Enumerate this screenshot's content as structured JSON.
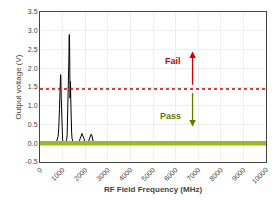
{
  "chart_data": {
    "type": "line",
    "xlabel": "RF Field Frequency (MHz)",
    "ylabel": "Output voltage (V)",
    "xlim": [
      0,
      10000
    ],
    "ylim": [
      -0.5,
      3.5
    ],
    "xticks": [
      0,
      1000,
      2000,
      3000,
      4000,
      5000,
      6000,
      7000,
      8000,
      9000,
      10000
    ],
    "yticks": [
      -0.5,
      {
        "value": 0,
        "label": "0.0"
      },
      0.5,
      {
        "value": 1,
        "label": "1.0"
      },
      1.5,
      {
        "value": 2,
        "label": "2.0"
      },
      2.5,
      {
        "value": 3,
        "label": "3.0"
      },
      3.5
    ],
    "grid": true,
    "color": "#000000",
    "x": [
      0,
      50,
      80,
      100,
      200,
      300,
      400,
      500,
      600,
      700,
      750,
      800,
      830,
      860,
      880,
      900,
      910,
      920,
      940,
      960,
      980,
      1000,
      1020,
      1050,
      1080,
      1100,
      1150,
      1180,
      1200,
      1220,
      1240,
      1260,
      1280,
      1290,
      1300,
      1310,
      1320,
      1330,
      1335,
      1340,
      1350,
      1360,
      1370,
      1380,
      1400,
      1420,
      1440,
      1460,
      1500,
      1600,
      1650,
      1700,
      1750,
      1800,
      1830,
      1860,
      1880,
      1900,
      1950,
      2000,
      2050,
      2100,
      2150,
      2200,
      2230,
      2260,
      2290,
      2320,
      2350,
      2400,
      2500,
      3000,
      4000,
      5000,
      6000,
      7000,
      8000,
      9000,
      10000
    ],
    "values": [
      0.02,
      0.02,
      0.03,
      0.03,
      0.03,
      0.03,
      0.04,
      0.04,
      0.04,
      0.05,
      0.08,
      0.18,
      0.4,
      0.9,
      1.4,
      1.82,
      1.83,
      1.8,
      1.2,
      0.6,
      0.25,
      0.1,
      0.05,
      0.04,
      0.04,
      0.04,
      0.05,
      0.1,
      0.2,
      0.6,
      1.2,
      1.7,
      2.3,
      2.85,
      2.9,
      2.6,
      1.65,
      1.2,
      1.65,
      1.7,
      1.65,
      1.2,
      0.7,
      0.5,
      0.28,
      0.12,
      0.05,
      0.04,
      0.03,
      0.03,
      0.03,
      0.04,
      0.08,
      0.18,
      0.23,
      0.26,
      0.22,
      0.18,
      0.1,
      0.04,
      0.03,
      0.03,
      0.05,
      0.14,
      0.22,
      0.24,
      0.22,
      0.14,
      0.06,
      0.03,
      0.02,
      0.02,
      0.02,
      0.02,
      0.02,
      0.02,
      0.02,
      0.02,
      0.02
    ],
    "reference_lines": [
      {
        "y": 1.45,
        "color": "#cc0000",
        "line_style": "dotted"
      }
    ],
    "bands": [
      {
        "y0": -0.06,
        "y1": 0.06,
        "color": "#99bb22"
      }
    ],
    "annotations": [
      {
        "text": "Fail",
        "x": 6750,
        "y_from": 1.52,
        "y_to": 2.45,
        "color": "#cc0000"
      },
      {
        "text": "Pass",
        "x": 6750,
        "y_from": 1.38,
        "y_to": 0.45,
        "color": "#667700"
      }
    ]
  }
}
